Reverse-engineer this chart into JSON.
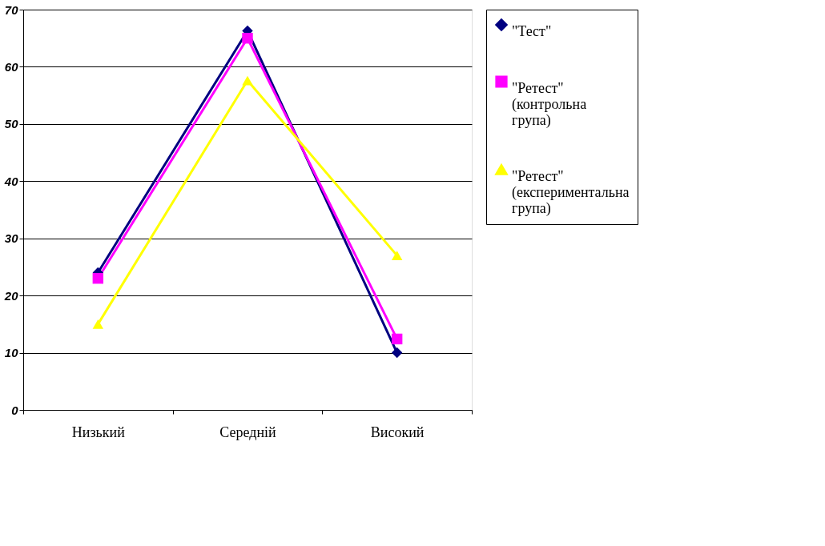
{
  "chart_data": {
    "type": "line",
    "categories": [
      "Низький",
      "Середній",
      "Високий"
    ],
    "series": [
      {
        "name": "\"Тест\"",
        "color": "#000080",
        "marker": "diamond",
        "values": [
          24,
          66.3,
          10
        ]
      },
      {
        "name": "\"Ретест\" (контрольна група)",
        "color": "#ff00ff",
        "marker": "square",
        "values": [
          23,
          65,
          12.4
        ]
      },
      {
        "name": "\"Ретест\" (експериментальна група)",
        "color": "#ffff00",
        "marker": "triangle",
        "values": [
          15,
          57.6,
          27
        ]
      }
    ],
    "ylim": [
      0,
      70
    ],
    "yticks": [
      0,
      10,
      20,
      30,
      40,
      50,
      60,
      70
    ],
    "grid": "y",
    "legend": "right",
    "line_style": "solid"
  }
}
